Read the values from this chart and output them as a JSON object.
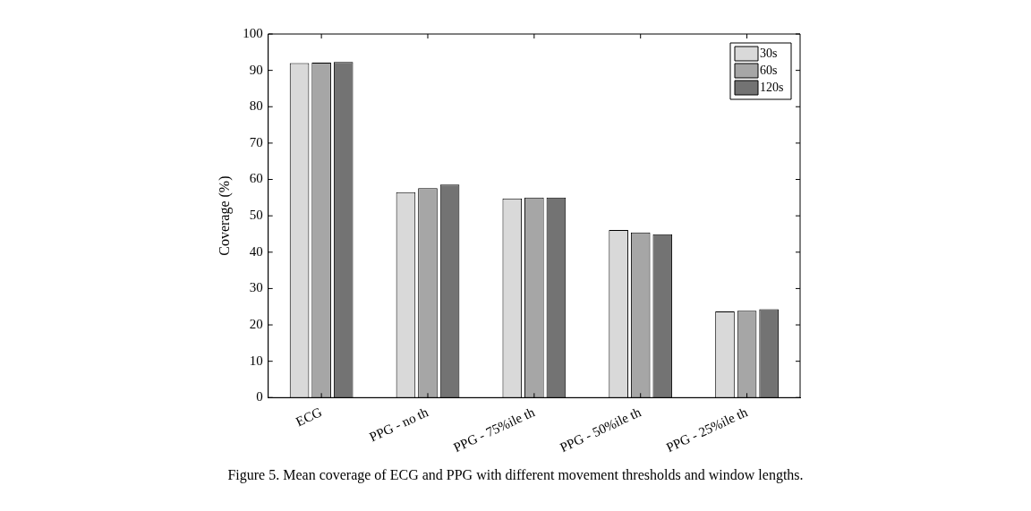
{
  "chart_data": {
    "type": "bar",
    "ylabel": "Coverage (%)",
    "categories": [
      "ECG",
      "PPG - no th",
      "PPG - 75%ile th",
      "PPG - 50%ile th",
      "PPG - 25%ile th"
    ],
    "series": [
      {
        "name": "30s",
        "color": "#d9d9d9",
        "values": [
          92.0,
          56.5,
          54.8,
          46.1,
          23.7
        ]
      },
      {
        "name": "60s",
        "color": "#a6a6a6",
        "values": [
          92.1,
          57.6,
          55.0,
          45.4,
          23.9
        ]
      },
      {
        "name": "120s",
        "color": "#737373",
        "values": [
          92.3,
          58.6,
          55.0,
          44.9,
          24.3
        ]
      }
    ],
    "ylim": [
      0,
      100
    ],
    "yticks": [
      0,
      10,
      20,
      30,
      40,
      50,
      60,
      70,
      80,
      90,
      100
    ],
    "grid": false,
    "legend": "top right",
    "annotations": [
      "Figure 5.  Mean coverage of ECG and PPG with different movement thresholds and window lengths."
    ]
  }
}
